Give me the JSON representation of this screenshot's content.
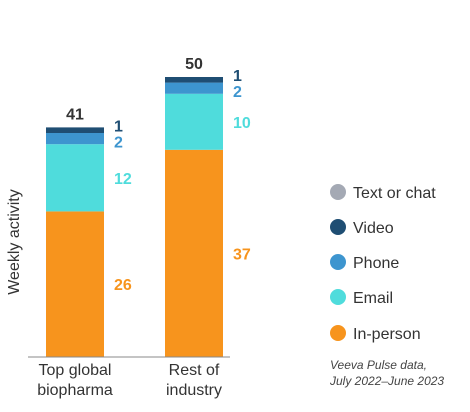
{
  "chart_data": {
    "type": "bar",
    "stacked": true,
    "categories": [
      [
        "Top global",
        "biopharma"
      ],
      [
        "Rest of",
        "industry"
      ]
    ],
    "ylabel": "Weekly activity",
    "totals": [
      41,
      50
    ],
    "series": [
      {
        "name": "In-person",
        "values": [
          26,
          37
        ],
        "color": "#f7941d",
        "label_color": "#f7941d"
      },
      {
        "name": "Email",
        "values": [
          12,
          10
        ],
        "color": "#4fdcdc",
        "label_color": "#4fdcdc"
      },
      {
        "name": "Phone",
        "values": [
          2,
          2
        ],
        "color": "#3d95cf",
        "label_color": "#3d95cf"
      },
      {
        "name": "Video",
        "values": [
          1,
          1
        ],
        "color": "#1f4e73",
        "label_color": "#1f4e73"
      },
      {
        "name": "Text or chat",
        "values": [
          0,
          0
        ],
        "color": "#a4a9b4",
        "label_color": "#a4a9b4"
      }
    ],
    "legend": {
      "placement": "right",
      "order": [
        "Text or chat",
        "Video",
        "Phone",
        "Email",
        "In-person"
      ]
    },
    "source_note": [
      "Veeva Pulse data,",
      "July 2022–June 2023"
    ],
    "ylim": [
      0,
      55
    ],
    "grid": false
  }
}
